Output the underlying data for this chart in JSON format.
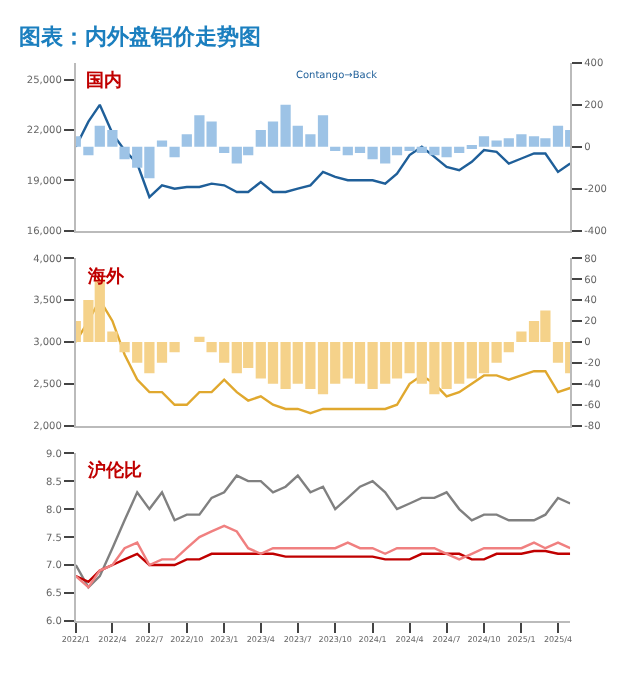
{
  "chart_data": [
    {
      "type": "line",
      "title": "图表：内外盘铝价走势图",
      "annotations": [
        "国内",
        "Contango→Back"
      ],
      "tick_labels": "y",
      "x": [
        "2022-01",
        "2022-02",
        "2022-03",
        "2022-04",
        "2022-05",
        "2022-06",
        "2022-07",
        "2022-08",
        "2022-09",
        "2022-10",
        "2022-11",
        "2022-12",
        "2023-01",
        "2023-02",
        "2023-03",
        "2023-04",
        "2023-05",
        "2023-06",
        "2023-07",
        "2023-08",
        "2023-09",
        "2023-10",
        "2023-11",
        "2023-12",
        "2024-01",
        "2024-02",
        "2024-03",
        "2024-04",
        "2024-05",
        "2024-06",
        "2024-07",
        "2024-08",
        "2024-09",
        "2024-10",
        "2024-11",
        "2024-12",
        "2025-01",
        "2025-02",
        "2025-03",
        "2025-04",
        "2025-05"
      ],
      "xlim": [
        "2022-01",
        "2025-05"
      ],
      "ylim": [
        16000,
        26000
      ],
      "yticks": [
        {
          "value": 16000,
          "label": "16,000"
        },
        {
          "value": 19000,
          "label": "19,000"
        },
        {
          "value": 22000,
          "label": "22,000"
        },
        {
          "value": 25000,
          "label": "25,000"
        }
      ],
      "y2lim": [
        -400,
        400
      ],
      "y2ticks": [
        -400,
        -200,
        0,
        200,
        400
      ],
      "series": [
        {
          "type": "bar",
          "axis": "y2",
          "color": "#9dc3e6",
          "values": [
            50,
            -40,
            100,
            80,
            -60,
            -100,
            -150,
            30,
            -50,
            60,
            150,
            120,
            -30,
            -80,
            -40,
            80,
            120,
            200,
            100,
            60,
            150,
            -20,
            -40,
            -30,
            -60,
            -80,
            -40,
            -20,
            -30,
            -40,
            -50,
            -30,
            -10,
            50,
            30,
            40,
            60,
            50,
            40,
            100,
            80
          ]
        },
        {
          "axis": "y",
          "color": "#1f5f99",
          "values": [
            21000,
            22500,
            23500,
            21800,
            20800,
            20000,
            18000,
            18700,
            18500,
            18600,
            18600,
            18800,
            18700,
            18300,
            18300,
            18900,
            18300,
            18300,
            18500,
            18700,
            19500,
            19200,
            19000,
            19000,
            19000,
            18800,
            19400,
            20500,
            21000,
            20400,
            19800,
            19600,
            20100,
            20800,
            20700,
            20000,
            20300,
            20600,
            20600,
            19500,
            20000
          ]
        }
      ]
    },
    {
      "type": "line",
      "annotations": [
        "海外"
      ],
      "tick_labels": "y",
      "x": [
        "2022-01",
        "2022-02",
        "2022-03",
        "2022-04",
        "2022-05",
        "2022-06",
        "2022-07",
        "2022-08",
        "2022-09",
        "2022-10",
        "2022-11",
        "2022-12",
        "2023-01",
        "2023-02",
        "2023-03",
        "2023-04",
        "2023-05",
        "2023-06",
        "2023-07",
        "2023-08",
        "2023-09",
        "2023-10",
        "2023-11",
        "2023-12",
        "2024-01",
        "2024-02",
        "2024-03",
        "2024-04",
        "2024-05",
        "2024-06",
        "2024-07",
        "2024-08",
        "2024-09",
        "2024-10",
        "2024-11",
        "2024-12",
        "2025-01",
        "2025-02",
        "2025-03",
        "2025-04",
        "2025-05"
      ],
      "xlim": [
        "2022-01",
        "2025-05"
      ],
      "ylim": [
        2000,
        4000
      ],
      "yticks": [
        {
          "value": 2000,
          "label": "2,000"
        },
        {
          "value": 2500,
          "label": "2,500"
        },
        {
          "value": 3000,
          "label": "3,000"
        },
        {
          "value": 3500,
          "label": "3,500"
        },
        {
          "value": 4000,
          "label": "4,000"
        }
      ],
      "y2lim": [
        -80,
        80
      ],
      "y2ticks": [
        -80,
        -60,
        -40,
        -20,
        0,
        20,
        40,
        60,
        80
      ],
      "series": [
        {
          "type": "bar",
          "axis": "y2",
          "color": "#f5d28a",
          "values": [
            20,
            40,
            60,
            10,
            -10,
            -20,
            -30,
            -20,
            -10,
            0,
            5,
            -10,
            -20,
            -30,
            -25,
            -35,
            -40,
            -45,
            -40,
            -45,
            -50,
            -40,
            -35,
            -40,
            -45,
            -40,
            -35,
            -30,
            -40,
            -50,
            -45,
            -40,
            -35,
            -30,
            -20,
            -10,
            10,
            20,
            30,
            -20,
            -30
          ]
        },
        {
          "axis": "y",
          "color": "#e0a82e",
          "values": [
            3000,
            3250,
            3500,
            3250,
            2850,
            2550,
            2400,
            2400,
            2250,
            2250,
            2400,
            2400,
            2550,
            2400,
            2300,
            2350,
            2250,
            2200,
            2200,
            2150,
            2200,
            2200,
            2200,
            2200,
            2200,
            2200,
            2250,
            2500,
            2600,
            2500,
            2350,
            2400,
            2500,
            2600,
            2600,
            2550,
            2600,
            2650,
            2650,
            2400,
            2450
          ]
        }
      ]
    },
    {
      "type": "line",
      "annotations": [
        "沪伦比"
      ],
      "x": [
        "2022-01",
        "2022-02",
        "2022-03",
        "2022-04",
        "2022-05",
        "2022-06",
        "2022-07",
        "2022-08",
        "2022-09",
        "2022-10",
        "2022-11",
        "2022-12",
        "2023-01",
        "2023-02",
        "2023-03",
        "2023-04",
        "2023-05",
        "2023-06",
        "2023-07",
        "2023-08",
        "2023-09",
        "2023-10",
        "2023-11",
        "2023-12",
        "2024-01",
        "2024-02",
        "2024-03",
        "2024-04",
        "2024-05",
        "2024-06",
        "2024-07",
        "2024-08",
        "2024-09",
        "2024-10",
        "2024-11",
        "2024-12",
        "2025-01",
        "2025-02",
        "2025-03",
        "2025-04",
        "2025-05"
      ],
      "xlim": [
        "2022-01",
        "2025-05"
      ],
      "xticks": [
        {
          "value": "2022-01",
          "label": "2022/1"
        },
        {
          "value": "2022-04",
          "label": "2022/4"
        },
        {
          "value": "2022-07",
          "label": "2022/7"
        },
        {
          "value": "2022-10",
          "label": "2022/10"
        },
        {
          "value": "2023-01",
          "label": "2023/1"
        },
        {
          "value": "2023-04",
          "label": "2023/4"
        },
        {
          "value": "2023-07",
          "label": "2023/7"
        },
        {
          "value": "2023-10",
          "label": "2023/10"
        },
        {
          "value": "2024-01",
          "label": "2024/1"
        },
        {
          "value": "2024-04",
          "label": "2024/4"
        },
        {
          "value": "2024-07",
          "label": "2024/7"
        },
        {
          "value": "2024-10",
          "label": "2024/10"
        },
        {
          "value": "2025-01",
          "label": "2025/1"
        },
        {
          "value": "2025-04",
          "label": "2025/4"
        }
      ],
      "ylim": [
        6.0,
        9.0
      ],
      "yticks": [
        {
          "value": 6.0,
          "label": "6.0"
        },
        {
          "value": 6.5,
          "label": "6.5"
        },
        {
          "value": 7.0,
          "label": "7.0"
        },
        {
          "value": 7.5,
          "label": "7.5"
        },
        {
          "value": 8.0,
          "label": "8.0"
        },
        {
          "value": 8.5,
          "label": "8.5"
        },
        {
          "value": 9.0,
          "label": "9.0"
        }
      ],
      "series": [
        {
          "color": "#808080",
          "values": [
            7.0,
            6.6,
            6.8,
            7.3,
            7.8,
            8.3,
            8.0,
            8.3,
            7.8,
            7.9,
            7.9,
            8.2,
            8.3,
            8.6,
            8.5,
            8.5,
            8.3,
            8.4,
            8.6,
            8.3,
            8.4,
            8.0,
            8.2,
            8.4,
            8.5,
            8.3,
            8.0,
            8.1,
            8.2,
            8.2,
            8.3,
            8.0,
            7.8,
            7.9,
            7.9,
            7.8,
            7.8,
            7.8,
            7.9,
            8.2,
            8.1
          ]
        },
        {
          "color": "#c00000",
          "values": [
            6.8,
            6.7,
            6.9,
            7.0,
            7.1,
            7.2,
            7.0,
            7.0,
            7.0,
            7.1,
            7.1,
            7.2,
            7.2,
            7.2,
            7.2,
            7.2,
            7.2,
            7.15,
            7.15,
            7.15,
            7.15,
            7.15,
            7.15,
            7.15,
            7.15,
            7.1,
            7.1,
            7.1,
            7.2,
            7.2,
            7.2,
            7.2,
            7.1,
            7.1,
            7.2,
            7.2,
            7.2,
            7.25,
            7.25,
            7.2,
            7.2
          ]
        },
        {
          "color": "#f08080",
          "values": [
            6.8,
            6.6,
            6.9,
            7.0,
            7.3,
            7.4,
            7.0,
            7.1,
            7.1,
            7.3,
            7.5,
            7.6,
            7.7,
            7.6,
            7.3,
            7.2,
            7.3,
            7.3,
            7.3,
            7.3,
            7.3,
            7.3,
            7.4,
            7.3,
            7.3,
            7.2,
            7.3,
            7.3,
            7.3,
            7.3,
            7.2,
            7.1,
            7.2,
            7.3,
            7.3,
            7.3,
            7.3,
            7.4,
            7.3,
            7.4,
            7.3
          ]
        }
      ]
    }
  ]
}
